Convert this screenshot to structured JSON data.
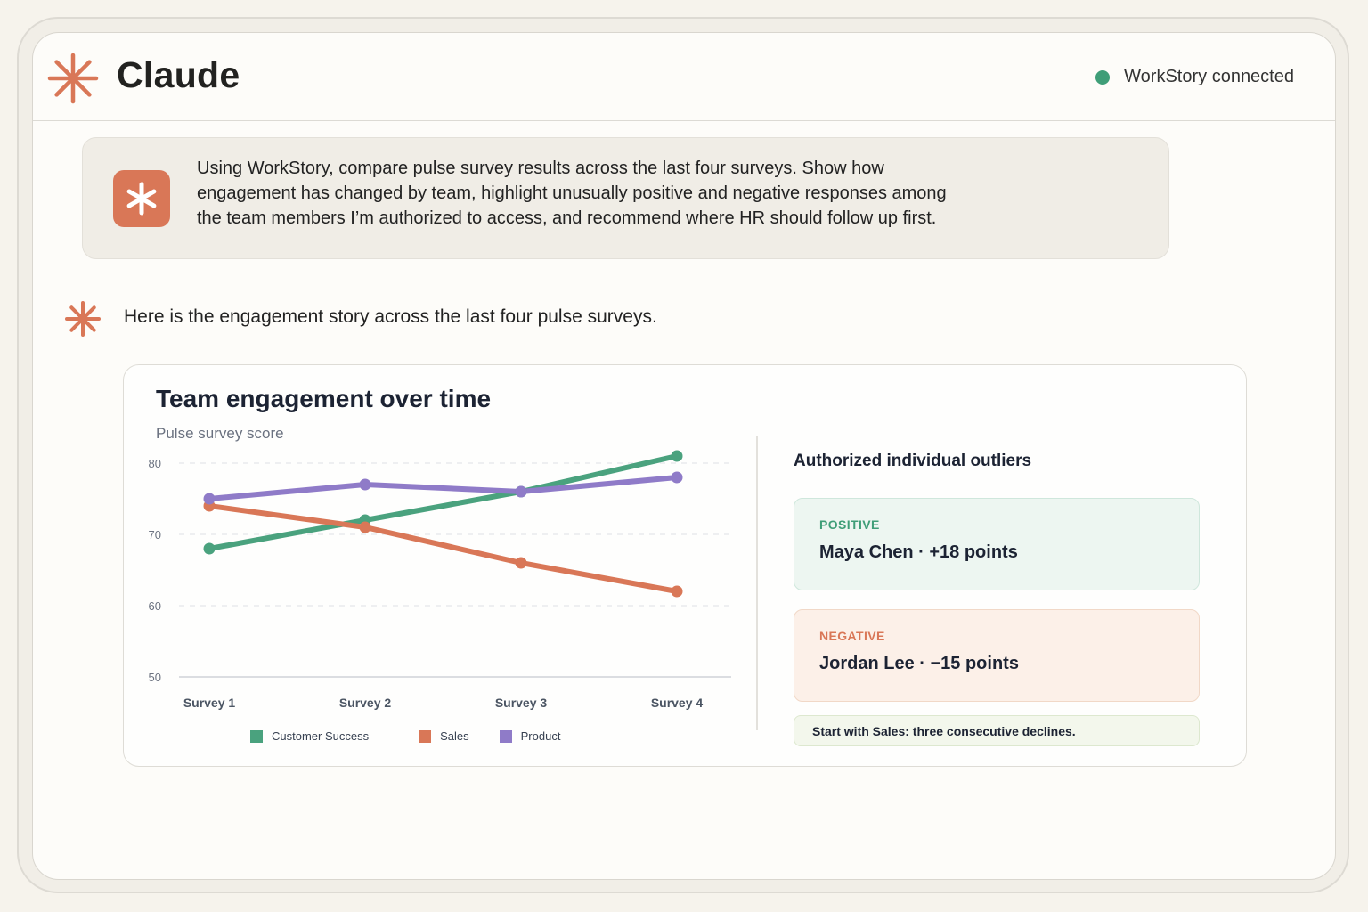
{
  "header": {
    "title": "Claude",
    "status_text": "WorkStory connected",
    "status_color": "#3f9e78",
    "logo_icon": "claude-starburst-icon"
  },
  "prompt": {
    "lines": [
      "Using WorkStory, compare pulse survey results across the last four surveys. Show how",
      "engagement has changed by team, highlight unusually positive and negative responses among",
      "the team members I’m authorized to access, and recommend where HR should follow up first."
    ]
  },
  "reply": {
    "text": "Here is the engagement story across the last four pulse surveys."
  },
  "chart_data": {
    "type": "line",
    "title": "Team engagement over time",
    "subtitle": "Pulse survey score",
    "categories": [
      "Survey 1",
      "Survey 2",
      "Survey 3",
      "Survey 4"
    ],
    "ylim": [
      50,
      80
    ],
    "yticks": [
      50,
      60,
      70,
      80
    ],
    "grid": true,
    "legend_position": "bottom",
    "series": [
      {
        "name": "Customer Success",
        "color": "#4aa27e",
        "values": [
          68,
          72,
          76,
          81
        ]
      },
      {
        "name": "Sales",
        "color": "#d97757",
        "values": [
          74,
          71,
          66,
          62
        ]
      },
      {
        "name": "Product",
        "color": "#8f7bc8",
        "values": [
          75,
          77,
          76,
          78
        ]
      }
    ]
  },
  "outliers": {
    "title": "Authorized individual outliers",
    "positive": {
      "tag": "POSITIVE",
      "name": "Maya Chen · +18 points"
    },
    "negative": {
      "tag": "NEGATIVE",
      "name": "Jordan Lee · −15 points"
    },
    "recommendation": "Start with Sales: three consecutive declines."
  }
}
